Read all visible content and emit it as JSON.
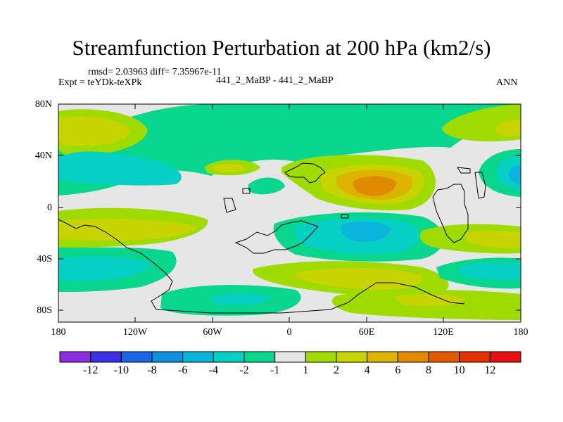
{
  "title": "Streamfunction Perturbation at 200 hPa (km2/s)",
  "stats": "rmsd= 2.03963 diff= 7.35967e-11",
  "left_label": "Expt = teYDk-teXPk",
  "center_label": "441_2_MaBP - 441_2_MaBP",
  "right_label": "ANN",
  "y_ticks": [
    "80N",
    "40N",
    "0",
    "40S",
    "80S"
  ],
  "x_ticks": [
    "180",
    "120W",
    "60W",
    "0",
    "60E",
    "120E",
    "180"
  ],
  "colorbar": {
    "labels": [
      "-12",
      "-10",
      "-8",
      "-6",
      "-4",
      "-2",
      "-1",
      "1",
      "2",
      "4",
      "6",
      "8",
      "10",
      "12"
    ],
    "colors": [
      "#8c2be2",
      "#3c2fe6",
      "#1a66e6",
      "#0f8fe0",
      "#0ab4dc",
      "#06cfc4",
      "#08d68c",
      "#e6e6e6",
      "#9fdb00",
      "#c8d400",
      "#dcb400",
      "#e08a00",
      "#e35a00",
      "#e63000",
      "#e61010"
    ]
  },
  "colors": {
    "background_neutral": "#e6e6e6",
    "coast": "#000000"
  }
}
